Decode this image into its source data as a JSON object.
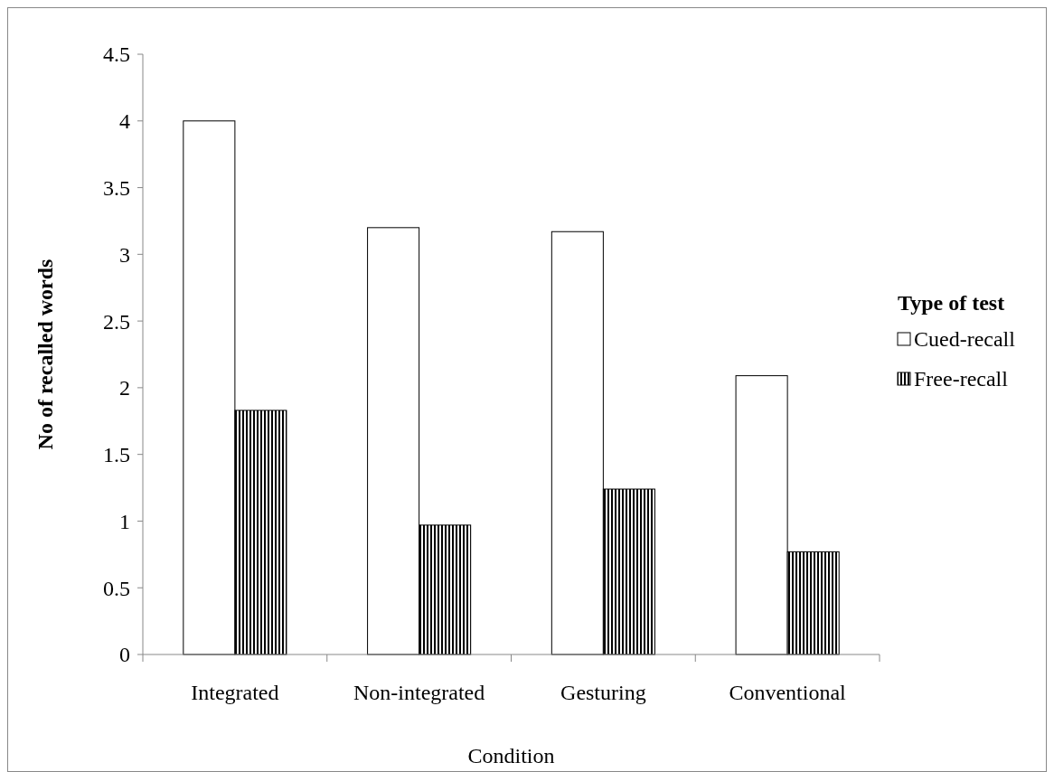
{
  "chart_data": {
    "type": "bar",
    "xlabel": "Condition",
    "ylabel": "No of recalled words",
    "legend_title": "Type of test",
    "categories": [
      "Integrated",
      "Non-integrated",
      "Gesturing",
      "Conventional"
    ],
    "series": [
      {
        "name": "Cued-recall",
        "color": "#ffffff",
        "values": [
          4.0,
          3.2,
          3.17,
          2.09
        ]
      },
      {
        "name": "Free-recall",
        "color": "#000000",
        "values": [
          1.83,
          0.97,
          1.24,
          0.77
        ]
      }
    ],
    "ylim": [
      0,
      4.5
    ],
    "yticks": [
      0,
      0.5,
      1,
      1.5,
      2,
      2.5,
      3,
      3.5,
      4,
      4.5
    ],
    "grid": false,
    "legend": "right"
  }
}
